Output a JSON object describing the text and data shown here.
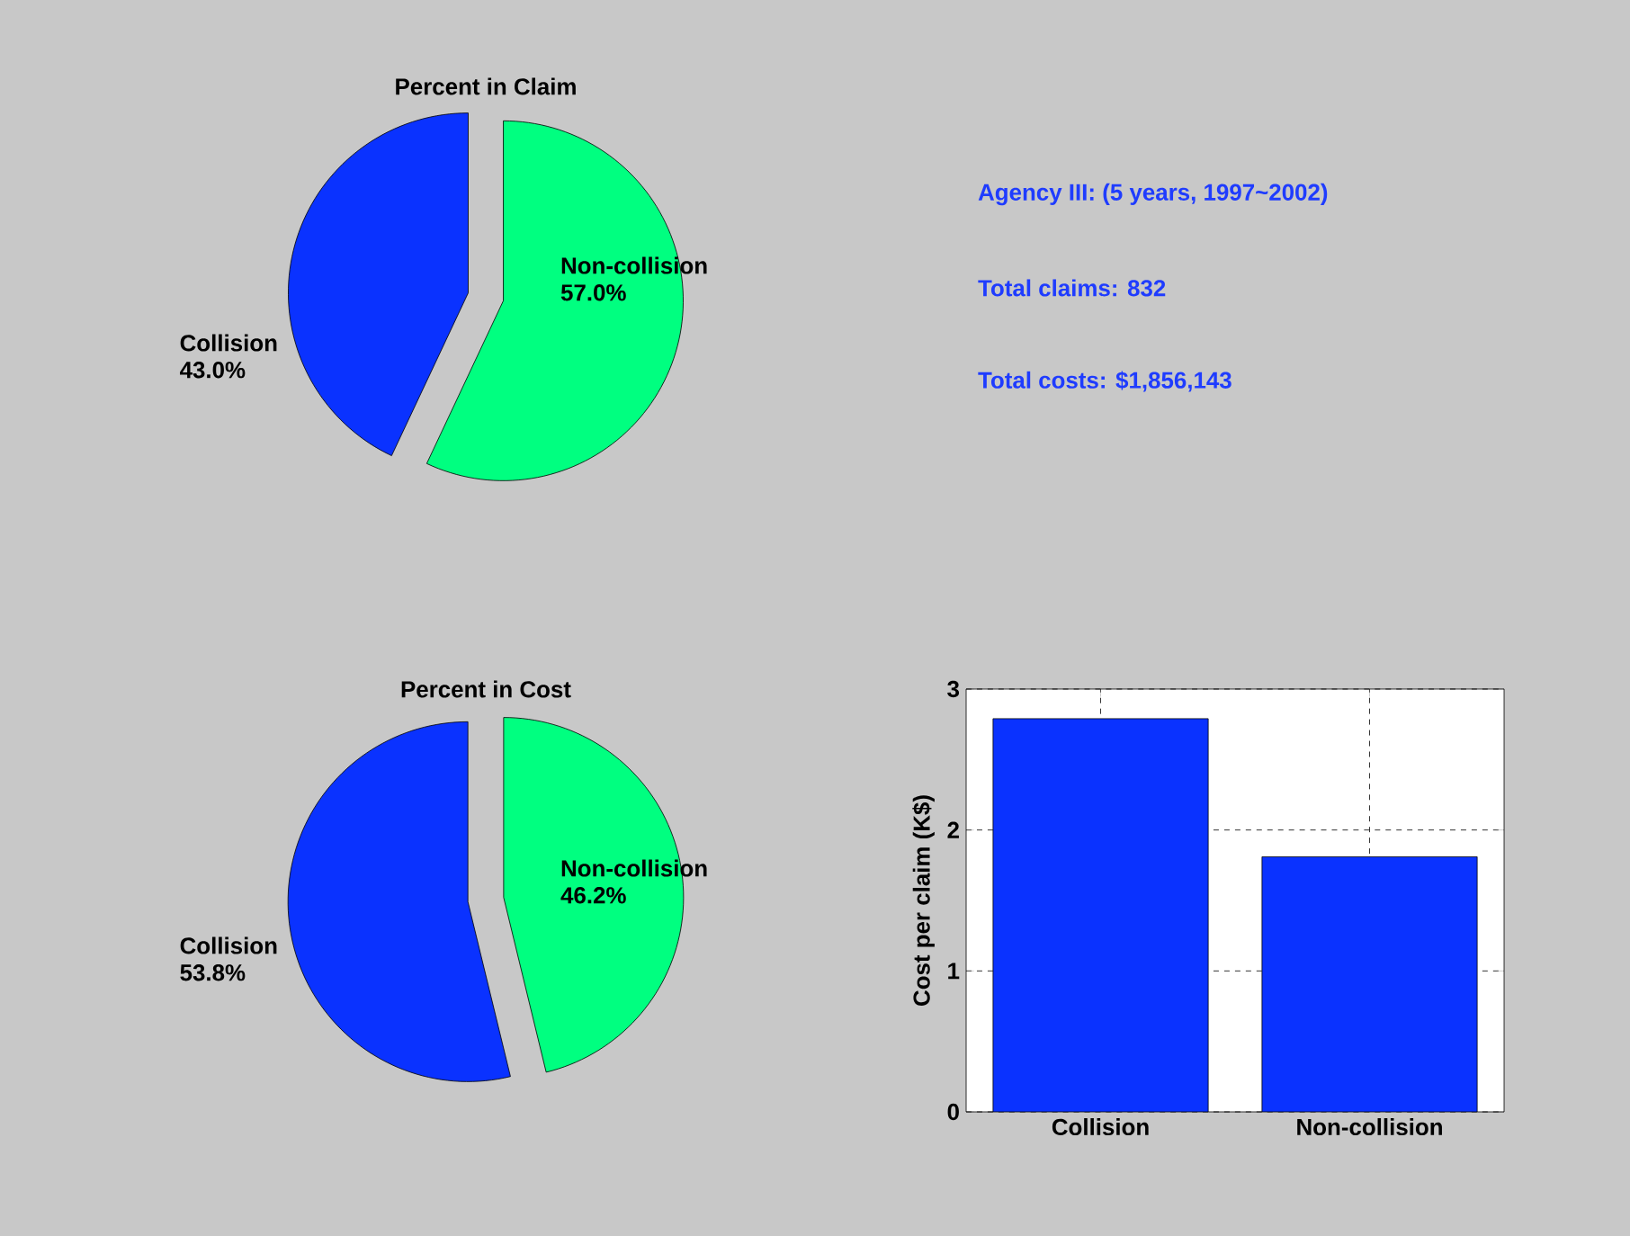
{
  "chart_data": [
    {
      "type": "pie",
      "title": "Percent in Claim",
      "categories": [
        "Collision",
        "Non-collision"
      ],
      "values": [
        43.0,
        57.0
      ],
      "value_labels": [
        "43.0%",
        "57.0%"
      ],
      "colors": [
        "#0a32ff",
        "#00ff80"
      ]
    },
    {
      "type": "other",
      "annotations": [
        "Agency III: (5 years, 1997~2002)",
        "Total claims: 832",
        "Total costs:  $1,856,143"
      ]
    },
    {
      "type": "pie",
      "title": "Percent in Cost",
      "categories": [
        "Collision",
        "Non-collision"
      ],
      "values": [
        53.8,
        46.2
      ],
      "value_labels": [
        "53.8%",
        "46.2%"
      ],
      "colors": [
        "#0a32ff",
        "#00ff80"
      ]
    },
    {
      "type": "bar",
      "categories": [
        "Collision",
        "Non-collision"
      ],
      "values": [
        2.79,
        1.81
      ],
      "color": "#0a32ff",
      "ylabel": "Cost per claim (K$)",
      "ylim": [
        0,
        3
      ],
      "yticks": [
        0,
        1,
        2,
        3
      ],
      "grid": true
    }
  ]
}
